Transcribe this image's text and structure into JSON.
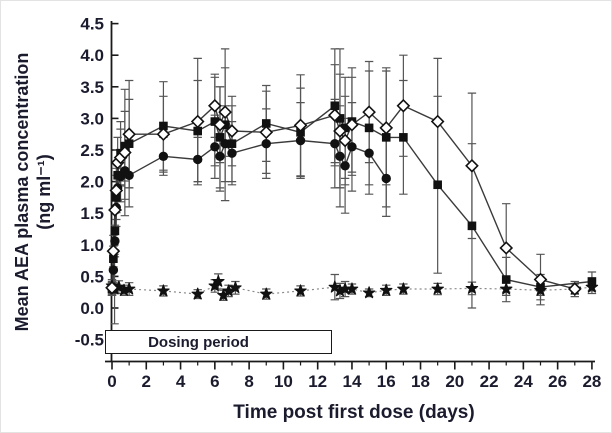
{
  "figure": {
    "y_axis_label_line1": "Mean AEA plasma concentration",
    "y_axis_label_line2": "(ng ml⁻¹)",
    "x_axis_label": "Time post first dose (days)"
  },
  "annotations": {
    "dosing_period": {
      "label": "Dosing period",
      "x_start_day": 0,
      "x_end_day": 12.8
    }
  },
  "colors": {
    "text": "#1b1b2e",
    "marker": "#111111",
    "series_line": "#3a3a3a",
    "error_bar": "#555555",
    "dotted_line": "#8a8a8a",
    "axis": "#1a1a1a"
  },
  "chart_data": {
    "type": "line",
    "title": "",
    "xlabel": "Time post first dose (days)",
    "ylabel": "Mean AEA plasma concentration (ng ml⁻¹)",
    "xlim": [
      0,
      28
    ],
    "ylim": [
      -0.5,
      4.5
    ],
    "grid": false,
    "legend_position": "none",
    "x_tick_values": [
      0,
      2,
      4,
      6,
      8,
      10,
      12,
      14,
      16,
      18,
      20,
      22,
      24,
      26,
      28
    ],
    "x_tick_labels": [
      "0",
      "2",
      "4",
      "6",
      "8",
      "10",
      "12",
      "14",
      "16",
      "18",
      "20",
      "22",
      "24",
      "26",
      "28"
    ],
    "x_minor_tick_values": [
      1,
      3,
      5,
      7,
      9,
      11,
      13,
      15,
      17,
      19,
      21,
      23,
      25,
      27
    ],
    "y_tick_values": [
      4.5,
      4.0,
      3.5,
      3.0,
      2.5,
      2.0,
      1.5,
      1.0,
      0.5,
      0.0,
      -0.5
    ],
    "y_tick_labels": [
      "4.5",
      "4.0",
      "3.5",
      "3.0",
      "2.5",
      "2.0",
      "1.5",
      "1.0",
      "0.5",
      "0.0",
      "-0.5"
    ],
    "series": [
      {
        "name": "star-dotted-baseline",
        "marker": "filled-star",
        "line": "dotted",
        "points": [
          [
            0,
            0.35,
            0.1
          ],
          [
            0.15,
            0.3,
            0.55
          ],
          [
            0.4,
            0.33,
            0.1
          ],
          [
            0.7,
            0.28,
            0.08
          ],
          [
            1,
            0.3,
            0.1
          ],
          [
            3,
            0.27,
            0.08
          ],
          [
            5,
            0.22,
            0.07
          ],
          [
            6,
            0.35,
            0.1
          ],
          [
            6.2,
            0.42,
            0.12
          ],
          [
            6.5,
            0.2,
            0.08
          ],
          [
            6.8,
            0.27,
            0.09
          ],
          [
            7.2,
            0.32,
            0.1
          ],
          [
            9,
            0.22,
            0.08
          ],
          [
            11,
            0.27,
            0.08
          ],
          [
            13,
            0.33,
            0.2
          ],
          [
            13.3,
            0.27,
            0.12
          ],
          [
            13.6,
            0.3,
            0.12
          ],
          [
            14,
            0.3,
            0.08
          ],
          [
            15,
            0.24,
            0.06
          ],
          [
            16,
            0.28,
            0.08
          ],
          [
            17,
            0.3,
            0.08
          ],
          [
            19,
            0.3,
            0.09
          ],
          [
            21,
            0.31,
            0.1
          ],
          [
            23,
            0.3,
            0.1
          ],
          [
            25,
            0.28,
            0.08
          ],
          [
            27,
            0.3,
            0.08
          ],
          [
            28,
            0.33,
            0.1
          ]
        ]
      },
      {
        "name": "filled-circle-group",
        "marker": "filled-circle",
        "line": "solid",
        "points": [
          [
            0,
            0.3,
            0.1
          ],
          [
            0.08,
            0.6,
            0.2
          ],
          [
            0.17,
            1.06,
            0.25
          ],
          [
            0.25,
            1.59,
            0.3
          ],
          [
            0.33,
            1.9,
            0.35
          ],
          [
            0.5,
            2.08,
            0.4
          ],
          [
            0.75,
            2.17,
            0.45
          ],
          [
            1,
            2.1,
            0.5
          ],
          [
            3,
            2.4,
            0.3
          ],
          [
            5,
            2.35,
            0.35
          ],
          [
            6,
            2.55,
            0.5
          ],
          [
            6.3,
            2.4,
            0.55
          ],
          [
            6.6,
            2.6,
            0.6
          ],
          [
            7,
            2.45,
            0.5
          ],
          [
            9,
            2.6,
            0.55
          ],
          [
            11,
            2.65,
            0.6
          ],
          [
            13,
            2.6,
            0.7
          ],
          [
            13.3,
            2.4,
            0.8
          ],
          [
            13.6,
            2.25,
            0.75
          ],
          [
            14,
            2.55,
            0.7
          ],
          [
            15,
            2.45,
            0.65
          ],
          [
            16,
            2.05,
            0.6
          ]
        ]
      },
      {
        "name": "filled-square-group",
        "marker": "filled-square",
        "line": "solid",
        "points": [
          [
            0,
            0.3,
            0.1
          ],
          [
            0.08,
            0.78,
            0.2
          ],
          [
            0.17,
            1.22,
            0.3
          ],
          [
            0.25,
            1.75,
            0.35
          ],
          [
            0.33,
            2.1,
            0.4
          ],
          [
            0.5,
            2.45,
            0.5
          ],
          [
            0.75,
            2.56,
            0.55
          ],
          [
            1,
            2.6,
            0.7
          ],
          [
            3,
            2.88,
            0.7
          ],
          [
            5,
            2.8,
            0.8
          ],
          [
            6,
            2.95,
            0.7
          ],
          [
            6.3,
            2.7,
            0.8
          ],
          [
            6.6,
            2.9,
            1.2
          ],
          [
            7,
            2.6,
            0.6
          ],
          [
            9,
            2.92,
            0.6
          ],
          [
            11,
            2.78,
            0.7
          ],
          [
            13,
            3.2,
            0.9
          ],
          [
            13.3,
            3.0,
            1.1
          ],
          [
            13.6,
            2.85,
            0.8
          ],
          [
            14,
            2.95,
            0.85
          ],
          [
            15,
            2.85,
            0.9
          ],
          [
            16,
            2.7,
            1.1
          ],
          [
            17,
            2.7,
            0.9
          ],
          [
            19,
            1.95,
            1.4
          ],
          [
            21,
            1.3,
            1.3
          ],
          [
            23,
            0.45,
            0.35
          ],
          [
            25,
            0.33,
            0.2
          ],
          [
            28,
            0.42,
            0.15
          ]
        ]
      },
      {
        "name": "open-diamond-group",
        "marker": "open-diamond",
        "line": "solid",
        "points": [
          [
            0,
            0.32,
            0.1
          ],
          [
            0.08,
            0.9,
            0.25
          ],
          [
            0.17,
            1.55,
            0.3
          ],
          [
            0.25,
            1.86,
            0.35
          ],
          [
            0.33,
            2.3,
            0.4
          ],
          [
            0.5,
            2.38,
            0.45
          ],
          [
            0.75,
            2.46,
            1.0
          ],
          [
            1,
            2.75,
            0.85
          ],
          [
            3,
            2.75,
            0.6
          ],
          [
            5,
            2.95,
            1.0
          ],
          [
            6,
            3.2,
            0.5
          ],
          [
            6.3,
            2.9,
            0.6
          ],
          [
            6.6,
            3.1,
            0.7
          ],
          [
            7,
            2.8,
            0.55
          ],
          [
            9,
            2.78,
            0.65
          ],
          [
            11,
            2.89,
            0.8
          ],
          [
            13,
            3.05,
            0.8
          ],
          [
            13.3,
            2.8,
            0.9
          ],
          [
            13.6,
            2.65,
            0.7
          ],
          [
            14,
            2.9,
            0.75
          ],
          [
            15,
            3.1,
            0.8
          ],
          [
            16,
            2.85,
            0.9
          ],
          [
            17,
            3.2,
            0.8
          ],
          [
            19,
            2.95,
            1.0
          ],
          [
            21,
            2.25,
            1.15
          ],
          [
            23,
            0.95,
            0.7
          ],
          [
            25,
            0.45,
            0.4
          ],
          [
            27,
            0.3,
            0.12
          ]
        ]
      }
    ]
  }
}
